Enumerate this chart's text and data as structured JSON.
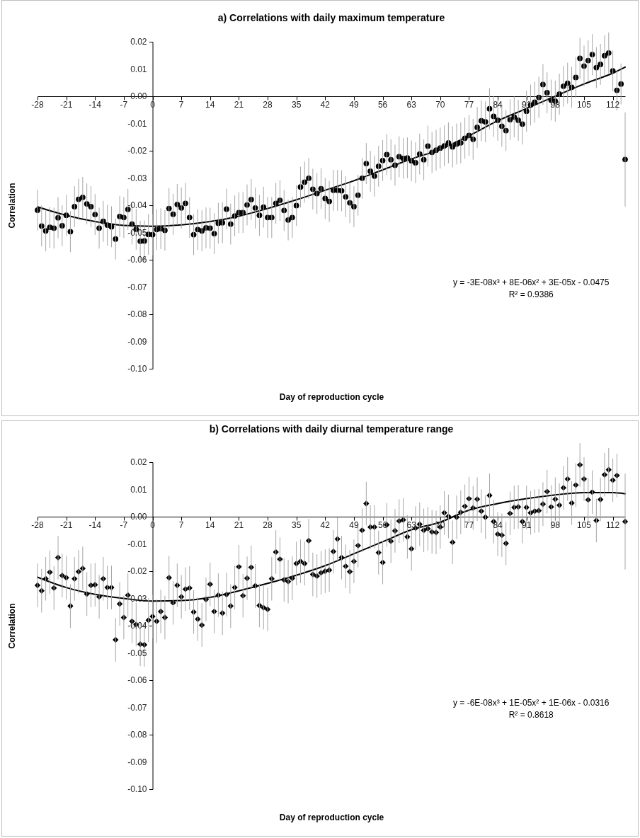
{
  "chart_data": [
    {
      "type": "scatter",
      "title": "a) Correlations with daily maximum temperature",
      "xlabel": "Day of reproduction cycle",
      "ylabel": "Correlation",
      "marker": "circle",
      "xlim": [
        -28,
        115
      ],
      "ylim": [
        -0.1,
        0.02
      ],
      "xticks": [
        -28,
        -21,
        -14,
        -7,
        0,
        7,
        14,
        21,
        28,
        35,
        42,
        49,
        56,
        63,
        70,
        77,
        84,
        91,
        98,
        105,
        112
      ],
      "yticks": [
        {
          "value": -0.1,
          "label": "-0.10"
        },
        {
          "value": -0.09,
          "label": "-0.09"
        },
        {
          "value": -0.08,
          "label": "-0.08"
        },
        {
          "value": -0.07,
          "label": "-0.07"
        },
        {
          "value": -0.06,
          "label": "-0.06"
        },
        {
          "value": -0.05,
          "label": "-0.05"
        },
        {
          "value": -0.04,
          "label": "-0.04"
        },
        {
          "value": -0.03,
          "label": "-0.03"
        },
        {
          "value": -0.02,
          "label": "-0.02"
        },
        {
          "value": -0.01,
          "label": "-0.01"
        },
        {
          "value": 0,
          "label": "0.00"
        },
        {
          "value": 0.01,
          "label": "0.01"
        },
        {
          "value": 0.02,
          "label": "0.02"
        }
      ],
      "annotations": [
        "y = -3E-08x³ + 8E-06x² + 3E-05x - 0.0475",
        "R² = 0.9386"
      ],
      "series": [
        {
          "type": "scatter",
          "color": "#000000",
          "x": [
            -28,
            -27,
            -26,
            -25,
            -24,
            -23,
            -22,
            -21,
            -20,
            -19,
            -18,
            -17,
            -16,
            -15,
            -14,
            -13,
            -12,
            -11,
            -10,
            -9,
            -8,
            -7,
            -6,
            -5,
            -4,
            -3,
            -2,
            -1,
            0,
            1,
            2,
            3,
            4,
            5,
            6,
            7,
            8,
            9,
            10,
            11,
            12,
            13,
            14,
            15,
            16,
            17,
            18,
            19,
            20,
            21,
            22,
            23,
            24,
            25,
            26,
            27,
            28,
            29,
            30,
            31,
            32,
            33,
            34,
            35,
            36,
            37,
            38,
            39,
            40,
            41,
            42,
            43,
            44,
            45,
            46,
            47,
            48,
            49,
            50,
            51,
            52,
            53,
            54,
            55,
            56,
            57,
            58,
            59,
            60,
            61,
            62,
            63,
            64,
            65,
            66,
            67,
            68,
            69,
            70,
            71,
            72,
            73,
            74,
            75,
            76,
            77,
            78,
            79,
            80,
            81,
            82,
            83,
            84,
            85,
            86,
            87,
            88,
            89,
            90,
            91,
            92,
            93,
            94,
            95,
            96,
            97,
            98,
            99,
            100,
            101,
            102,
            103,
            104,
            105,
            106,
            107,
            108,
            109,
            110,
            111,
            112,
            113,
            114,
            115
          ],
          "values": [
            -0.0418,
            -0.0476,
            -0.0494,
            -0.0481,
            -0.0484,
            -0.0446,
            -0.0475,
            -0.0437,
            -0.0497,
            -0.0405,
            -0.0378,
            -0.0371,
            -0.0395,
            -0.0405,
            -0.0434,
            -0.0484,
            -0.0459,
            -0.0473,
            -0.0479,
            -0.0524,
            -0.0441,
            -0.0445,
            -0.0415,
            -0.0469,
            -0.0488,
            -0.0532,
            -0.0531,
            -0.0507,
            -0.0508,
            -0.0489,
            -0.0486,
            -0.0492,
            -0.0412,
            -0.0433,
            -0.0397,
            -0.041,
            -0.0393,
            -0.0445,
            -0.0508,
            -0.0489,
            -0.0494,
            -0.0483,
            -0.0484,
            -0.0504,
            -0.0466,
            -0.0464,
            -0.0414,
            -0.0469,
            -0.0439,
            -0.0427,
            -0.0427,
            -0.0399,
            -0.0379,
            -0.041,
            -0.0437,
            -0.0407,
            -0.0445,
            -0.0445,
            -0.0393,
            -0.0382,
            -0.0419,
            -0.0454,
            -0.0445,
            -0.0401,
            -0.0333,
            -0.0315,
            -0.0301,
            -0.0341,
            -0.0357,
            -0.0339,
            -0.0375,
            -0.0386,
            -0.0345,
            -0.0345,
            -0.0347,
            -0.0369,
            -0.0391,
            -0.0405,
            -0.0363,
            -0.0301,
            -0.0247,
            -0.0275,
            -0.0293,
            -0.0257,
            -0.0236,
            -0.0214,
            -0.0233,
            -0.0253,
            -0.0222,
            -0.0228,
            -0.0226,
            -0.0237,
            -0.0244,
            -0.0212,
            -0.0233,
            -0.0183,
            -0.0206,
            -0.0198,
            -0.019,
            -0.0182,
            -0.0171,
            -0.0186,
            -0.0175,
            -0.0171,
            -0.0154,
            -0.0144,
            -0.0158,
            -0.0114,
            -0.009,
            -0.0094,
            -0.0046,
            -0.0074,
            -0.0088,
            -0.011,
            -0.0126,
            -0.0086,
            -0.0076,
            -0.0088,
            -0.0102,
            -0.0055,
            -0.0032,
            -0.0022,
            -0.0004,
            0.0043,
            0.0013,
            -0.0014,
            -0.0018,
            0.0008,
            0.0037,
            0.0048,
            0.0033,
            0.0069,
            0.0139,
            0.0111,
            0.0131,
            0.0153,
            0.0105,
            0.0117,
            0.0149,
            0.0159,
            0.0093,
            0.0022,
            0.0045,
            -0.0232
          ],
          "errors": [
            0.0075,
            0.0075,
            0.0075,
            0.0075,
            0.0075,
            0.0075,
            0.0075,
            0.0075,
            0.0075,
            0.0075,
            0.0075,
            0.0075,
            0.0075,
            0.0075,
            0.0075,
            0.0075,
            0.0075,
            0.0075,
            0.0075,
            0.0075,
            0.0075,
            0.0075,
            0.0075,
            0.0075,
            0.0075,
            0.0075,
            0.0075,
            0.0075,
            0.0075,
            0.0075,
            0.0075,
            0.0075,
            0.0075,
            0.0075,
            0.0075,
            0.0075,
            0.0075,
            0.0075,
            0.0075,
            0.0075,
            0.0075,
            0.0075,
            0.0075,
            0.0075,
            0.0075,
            0.0075,
            0.0075,
            0.0075,
            0.0075,
            0.0075,
            0.0075,
            0.0075,
            0.0075,
            0.0075,
            0.0075,
            0.0075,
            0.0075,
            0.0075,
            0.0075,
            0.0075,
            0.0075,
            0.0075,
            0.0075,
            0.0075,
            0.0075,
            0.0075,
            0.0075,
            0.0075,
            0.0075,
            0.0075,
            0.0075,
            0.0075,
            0.0075,
            0.0075,
            0.0075,
            0.0075,
            0.0075,
            0.0075,
            0.0075,
            0.0075,
            0.0075,
            0.0075,
            0.0075,
            0.0075,
            0.0075,
            0.0075,
            0.0075,
            0.0075,
            0.0075,
            0.0075,
            0.0075,
            0.0075,
            0.0075,
            0.0075,
            0.0075,
            0.0075,
            0.0075,
            0.0075,
            0.0075,
            0.0075,
            0.0075,
            0.0075,
            0.0075,
            0.0075,
            0.0075,
            0.0075,
            0.0075,
            0.0075,
            0.0075,
            0.0075,
            0.0075,
            0.0075,
            0.0075,
            0.0075,
            0.0075,
            0.0075,
            0.0075,
            0.0075,
            0.0075,
            0.0075,
            0.0075,
            0.0075,
            0.0075,
            0.0075,
            0.0075,
            0.0075,
            0.0075,
            0.0075,
            0.0075,
            0.0075,
            0.0075,
            0.0075,
            0.0075,
            0.0075,
            0.0075,
            0.0075,
            0.0075,
            0.0075,
            0.0075,
            0.0075,
            0.0075,
            0.0075,
            0.0075,
            0.0173
          ]
        },
        {
          "type": "line",
          "color": "#000000",
          "marker": "none",
          "x": [
            -28,
            -21,
            -14,
            -7,
            0,
            7,
            14,
            21,
            28,
            35,
            42,
            49,
            56,
            63,
            70,
            77,
            84,
            91,
            98,
            105,
            112,
            115
          ],
          "values": [
            -0.0406,
            -0.0437,
            -0.046,
            -0.0474,
            -0.0477,
            -0.0472,
            -0.046,
            -0.044,
            -0.0412,
            -0.038,
            -0.0345,
            -0.031,
            -0.027,
            -0.023,
            -0.0195,
            -0.0145,
            -0.009,
            -0.0045,
            0.0,
            0.0045,
            0.0085,
            0.0107
          ]
        }
      ]
    },
    {
      "type": "scatter",
      "title": "b) Correlations with daily diurnal temperature range",
      "xlabel": "Day of reproduction cycle",
      "ylabel": "Correlation",
      "marker": "diamond",
      "xlim": [
        -28,
        115
      ],
      "ylim": [
        -0.1,
        0.02
      ],
      "xticks": [
        -28,
        -21,
        -14,
        -7,
        0,
        7,
        14,
        21,
        28,
        35,
        42,
        49,
        56,
        63,
        70,
        77,
        84,
        91,
        98,
        105,
        112
      ],
      "yticks": [
        {
          "value": -0.1,
          "label": "-0.10"
        },
        {
          "value": -0.09,
          "label": "-0.09"
        },
        {
          "value": -0.08,
          "label": "-0.08"
        },
        {
          "value": -0.07,
          "label": "-0.07"
        },
        {
          "value": -0.06,
          "label": "-0.06"
        },
        {
          "value": -0.05,
          "label": "-0.05"
        },
        {
          "value": -0.04,
          "label": "-0.04"
        },
        {
          "value": -0.03,
          "label": "-0.03"
        },
        {
          "value": -0.02,
          "label": "-0.02"
        },
        {
          "value": -0.01,
          "label": "-0.01"
        },
        {
          "value": 0,
          "label": "0.00"
        },
        {
          "value": 0.01,
          "label": "0.01"
        },
        {
          "value": 0.02,
          "label": "0.02"
        }
      ],
      "annotations": [
        "y = -6E-08x³ + 1E-05x² + 1E-06x - 0.0316",
        "R² = 0.8618"
      ],
      "series": [
        {
          "type": "scatter",
          "color": "#000000",
          "x": [
            -28,
            -27,
            -26,
            -25,
            -24,
            -23,
            -22,
            -21,
            -20,
            -19,
            -18,
            -17,
            -16,
            -15,
            -14,
            -13,
            -12,
            -11,
            -10,
            -9,
            -8,
            -7,
            -6,
            -5,
            -4,
            -3,
            -2,
            -1,
            0,
            1,
            2,
            3,
            4,
            5,
            6,
            7,
            8,
            9,
            10,
            11,
            12,
            13,
            14,
            15,
            16,
            17,
            18,
            19,
            20,
            21,
            22,
            23,
            24,
            25,
            26,
            27,
            28,
            29,
            30,
            31,
            32,
            33,
            34,
            35,
            36,
            37,
            38,
            39,
            40,
            41,
            42,
            43,
            44,
            45,
            46,
            47,
            48,
            49,
            50,
            51,
            52,
            53,
            54,
            55,
            56,
            57,
            58,
            59,
            60,
            61,
            62,
            63,
            64,
            65,
            66,
            67,
            68,
            69,
            70,
            71,
            72,
            73,
            74,
            75,
            76,
            77,
            78,
            79,
            80,
            81,
            82,
            83,
            84,
            85,
            86,
            87,
            88,
            89,
            90,
            91,
            92,
            93,
            94,
            95,
            96,
            97,
            98,
            99,
            100,
            101,
            102,
            103,
            104,
            105,
            106,
            107,
            108,
            109,
            110,
            111,
            112,
            113,
            115
          ],
          "values": [
            -0.0252,
            -0.0272,
            -0.0228,
            -0.0204,
            -0.0262,
            -0.015,
            -0.0216,
            -0.0224,
            -0.0328,
            -0.0228,
            -0.0202,
            -0.019,
            -0.0284,
            -0.0252,
            -0.025,
            -0.0294,
            -0.0228,
            -0.026,
            -0.026,
            -0.0452,
            -0.032,
            -0.037,
            -0.0288,
            -0.0384,
            -0.0396,
            -0.0468,
            -0.047,
            -0.038,
            -0.0366,
            -0.0384,
            -0.0348,
            -0.037,
            -0.0224,
            -0.0316,
            -0.0252,
            -0.0294,
            -0.0266,
            -0.0262,
            -0.035,
            -0.0376,
            -0.0398,
            -0.0304,
            -0.0248,
            -0.0348,
            -0.0288,
            -0.0354,
            -0.0286,
            -0.0328,
            -0.026,
            -0.0184,
            -0.029,
            -0.0226,
            -0.0186,
            -0.0254,
            -0.0326,
            -0.0334,
            -0.034,
            -0.0228,
            -0.013,
            -0.0156,
            -0.0232,
            -0.0238,
            -0.0226,
            -0.0172,
            -0.0164,
            -0.0172,
            -0.0088,
            -0.0212,
            -0.0218,
            -0.0206,
            -0.02,
            -0.0196,
            -0.0128,
            -0.0082,
            -0.015,
            -0.0182,
            -0.0202,
            -0.0164,
            -0.0106,
            -0.005,
            0.0048,
            -0.0038,
            -0.0038,
            -0.0132,
            -0.0168,
            -0.003,
            -0.009,
            -0.0052,
            -0.0016,
            -0.0012,
            -0.0074,
            -0.0118,
            -0.0042,
            -0.0028,
            -0.005,
            -0.0044,
            -0.0056,
            -0.0058,
            -0.0038,
            0.0014,
            0.0001,
            -0.0094,
            -0.0002,
            0.0016,
            0.0038,
            0.0066,
            0.0032,
            0.0064,
            0.002,
            -0.0002,
            0.0078,
            -0.0018,
            -0.0064,
            -0.0068,
            -0.0098,
            0.0012,
            0.0034,
            0.0036,
            -0.0018,
            0.0034,
            0.0014,
            0.002,
            0.0022,
            0.0046,
            0.0092,
            0.0036,
            0.0064,
            0.0042,
            0.0106,
            0.0138,
            0.005,
            0.0116,
            0.019,
            0.0138,
            0.0062,
            0.009,
            -0.0014,
            0.0063,
            0.0154,
            0.0172,
            0.0134,
            0.0151,
            -0.0018
          ],
          "errors": [
            0.008,
            0.008,
            0.008,
            0.008,
            0.008,
            0.008,
            0.008,
            0.008,
            0.008,
            0.008,
            0.008,
            0.008,
            0.008,
            0.008,
            0.008,
            0.008,
            0.008,
            0.008,
            0.008,
            0.008,
            0.008,
            0.008,
            0.008,
            0.008,
            0.008,
            0.008,
            0.008,
            0.008,
            0.008,
            0.008,
            0.008,
            0.008,
            0.008,
            0.008,
            0.008,
            0.008,
            0.008,
            0.008,
            0.008,
            0.008,
            0.008,
            0.008,
            0.008,
            0.008,
            0.008,
            0.008,
            0.008,
            0.008,
            0.008,
            0.008,
            0.008,
            0.008,
            0.008,
            0.008,
            0.008,
            0.008,
            0.008,
            0.008,
            0.008,
            0.008,
            0.008,
            0.008,
            0.008,
            0.008,
            0.008,
            0.008,
            0.008,
            0.008,
            0.008,
            0.008,
            0.008,
            0.008,
            0.008,
            0.008,
            0.008,
            0.008,
            0.008,
            0.008,
            0.008,
            0.008,
            0.008,
            0.008,
            0.008,
            0.008,
            0.008,
            0.008,
            0.008,
            0.008,
            0.008,
            0.008,
            0.008,
            0.008,
            0.008,
            0.008,
            0.008,
            0.008,
            0.008,
            0.008,
            0.008,
            0.008,
            0.008,
            0.008,
            0.008,
            0.008,
            0.008,
            0.008,
            0.008,
            0.008,
            0.008,
            0.008,
            0.008,
            0.008,
            0.008,
            0.008,
            0.008,
            0.008,
            0.008,
            0.008,
            0.008,
            0.008,
            0.008,
            0.008,
            0.008,
            0.008,
            0.008,
            0.008,
            0.008,
            0.008,
            0.008,
            0.008,
            0.008,
            0.008,
            0.008,
            0.008,
            0.008,
            0.008,
            0.008,
            0.008,
            0.008,
            0.008,
            0.008,
            0.008,
            0.0176
          ]
        },
        {
          "type": "line",
          "color": "#000000",
          "marker": "none",
          "x": [
            -28,
            -21,
            -14,
            -7,
            0,
            7,
            14,
            21,
            28,
            35,
            42,
            49,
            56,
            63,
            70,
            77,
            84,
            91,
            98,
            105,
            112,
            115
          ],
          "values": [
            -0.0222,
            -0.026,
            -0.0285,
            -0.03,
            -0.031,
            -0.0308,
            -0.0296,
            -0.0272,
            -0.0245,
            -0.0215,
            -0.018,
            -0.0136,
            -0.0092,
            -0.0048,
            -0.002,
            0.0024,
            0.0048,
            0.0066,
            0.008,
            0.0088,
            0.0088,
            0.0084
          ]
        }
      ]
    }
  ]
}
